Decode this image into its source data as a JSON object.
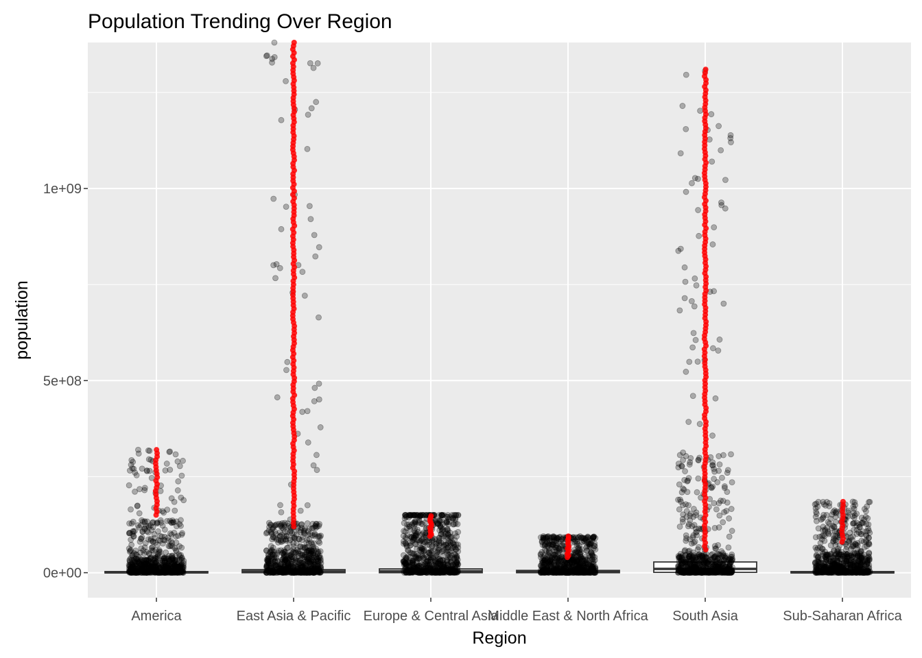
{
  "chart_data": {
    "type": "box+jitter",
    "title": "Population Trending Over Region",
    "xlabel": "Region",
    "ylabel": "population",
    "categories": [
      "America",
      "East Asia & Pacific",
      "Europe & Central Asia",
      "Middle East & North Africa",
      "South Asia",
      "Sub-Saharan Africa"
    ],
    "y_ticks": [
      {
        "value": 0,
        "label": "0e+00"
      },
      {
        "value": 500000000,
        "label": "5e+08"
      },
      {
        "value": 1000000000,
        "label": "1e+09"
      }
    ],
    "ylim": [
      -65000000,
      1380000000
    ],
    "grid": true,
    "colors": {
      "panel": "#ebebeb",
      "grid": "#ffffff",
      "points": "#000000",
      "highlight": "#ff0000",
      "box": "#333333"
    },
    "series": [
      {
        "category": "America",
        "box": {
          "q1": 0,
          "median": 1000000,
          "q3": 3000000
        },
        "max": 320000000,
        "dense_upto": 40000000,
        "cluster_upto": 140000000,
        "red_from": 150000000,
        "red_to": 320000000
      },
      {
        "category": "East Asia & Pacific",
        "box": {
          "q1": 0,
          "median": 3000000,
          "q3": 8000000
        },
        "max": 1380000000,
        "dense_upto": 60000000,
        "cluster_upto": 130000000,
        "red_from": 120000000,
        "red_to": 1380000000
      },
      {
        "category": "Europe & Central Asia",
        "box": {
          "q1": 0,
          "median": 4000000,
          "q3": 10000000
        },
        "max": 150000000,
        "dense_upto": 90000000,
        "cluster_upto": 150000000,
        "red_from": 95000000,
        "red_to": 148000000
      },
      {
        "category": "Middle East & North Africa",
        "box": {
          "q1": 0,
          "median": 2000000,
          "q3": 6000000
        },
        "max": 95000000,
        "dense_upto": 45000000,
        "cluster_upto": 90000000,
        "red_from": 40000000,
        "red_to": 95000000
      },
      {
        "category": "South Asia",
        "box": {
          "q1": 1000000,
          "median": 10000000,
          "q3": 28000000
        },
        "max": 1310000000,
        "dense_upto": 50000000,
        "cluster_upto": 320000000,
        "red_from": 60000000,
        "red_to": 1310000000
      },
      {
        "category": "Sub-Saharan Africa",
        "box": {
          "q1": 0,
          "median": 1000000,
          "q3": 3000000
        },
        "max": 185000000,
        "dense_upto": 50000000,
        "cluster_upto": 140000000,
        "red_from": 80000000,
        "red_to": 185000000
      }
    ]
  }
}
